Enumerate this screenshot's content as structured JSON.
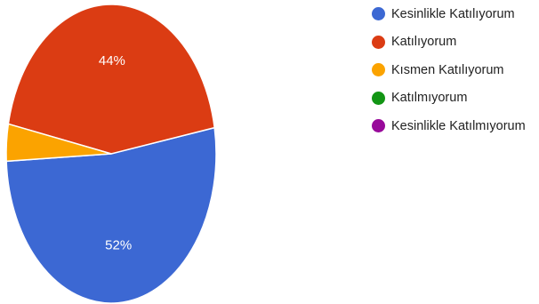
{
  "chart_data": {
    "type": "pie",
    "title": "",
    "legend_position": "right",
    "slices": [
      {
        "label": "Kesinlikle Katılıyorum",
        "value": 52,
        "display": "52%",
        "color": "#3c68d3"
      },
      {
        "label": "Katılıyorum",
        "value": 44,
        "display": "44%",
        "color": "#db3c13"
      },
      {
        "label": "Kısmen Katılıyorum",
        "value": 4,
        "display": "",
        "color": "#fba300"
      },
      {
        "label": "Katılmıyorum",
        "value": 0,
        "display": "",
        "color": "#129514"
      },
      {
        "label": "Kesinlikle Katılmıyorum",
        "value": 0,
        "display": "",
        "color": "#980a9a"
      }
    ]
  }
}
